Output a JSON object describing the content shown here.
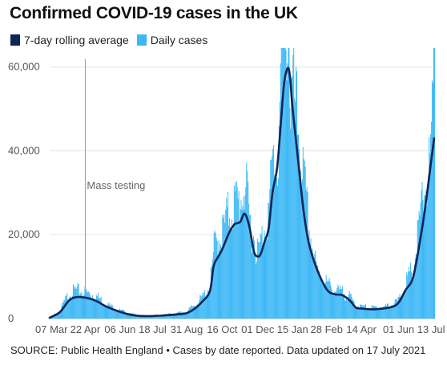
{
  "title": "Confirmed COVID-19 cases in the UK",
  "legend": [
    {
      "label": "7-day rolling average",
      "color": "#0f2557"
    },
    {
      "label": "Daily cases",
      "color": "#3db8f5"
    }
  ],
  "annotation": "Mass testing",
  "source": "SOURCE: Public Health England • Cases by date reported. Data updated on 17 July 2021",
  "chart_data": {
    "type": "bar",
    "title": "Confirmed COVID-19 cases in the UK",
    "xlabel": "",
    "ylabel": "",
    "x_start": "2020-03-07",
    "x_end": "2021-07-17",
    "ylim": [
      0,
      63000
    ],
    "yticks": [
      0,
      20000,
      40000,
      60000
    ],
    "ytick_labels": [
      "0",
      "20,000",
      "40,000",
      "60,000"
    ],
    "xtick_labels": [
      "07 Mar",
      "22 Apr",
      "06 Jun",
      "18 Jul",
      "31 Aug",
      "16 Oct",
      "01 Dec",
      "15 Jan",
      "28 Feb",
      "14 Apr",
      "01 Jun",
      "13 Jul"
    ],
    "xtick_dates": [
      "2020-03-07",
      "2020-04-22",
      "2020-06-06",
      "2020-07-18",
      "2020-08-31",
      "2020-10-16",
      "2020-12-01",
      "2021-01-15",
      "2021-02-28",
      "2021-04-14",
      "2021-06-01",
      "2021-07-13"
    ],
    "grid": true,
    "legend_position": "top-left",
    "vline": {
      "date": "2020-04-22",
      "label": "Mass testing"
    },
    "series": [
      {
        "name": "7-day rolling average",
        "type": "line",
        "color": "#0f2557",
        "points": [
          [
            "2020-03-07",
            200
          ],
          [
            "2020-03-20",
            1500
          ],
          [
            "2020-04-01",
            4300
          ],
          [
            "2020-04-10",
            5100
          ],
          [
            "2020-04-22",
            5000
          ],
          [
            "2020-05-05",
            4300
          ],
          [
            "2020-05-20",
            2800
          ],
          [
            "2020-06-06",
            1600
          ],
          [
            "2020-06-20",
            900
          ],
          [
            "2020-07-03",
            600
          ],
          [
            "2020-07-18",
            600
          ],
          [
            "2020-08-01",
            750
          ],
          [
            "2020-08-15",
            950
          ],
          [
            "2020-08-31",
            1300
          ],
          [
            "2020-09-10",
            2300
          ],
          [
            "2020-09-20",
            4000
          ],
          [
            "2020-09-30",
            6500
          ],
          [
            "2020-10-05",
            12500
          ],
          [
            "2020-10-10",
            14500
          ],
          [
            "2020-10-16",
            16500
          ],
          [
            "2020-10-25",
            20500
          ],
          [
            "2020-11-01",
            22500
          ],
          [
            "2020-11-08",
            23000
          ],
          [
            "2020-11-14",
            25000
          ],
          [
            "2020-11-20",
            22000
          ],
          [
            "2020-11-26",
            16000
          ],
          [
            "2020-12-01",
            14800
          ],
          [
            "2020-12-05",
            15500
          ],
          [
            "2020-12-10",
            18500
          ],
          [
            "2020-12-15",
            21500
          ],
          [
            "2020-12-20",
            30000
          ],
          [
            "2020-12-26",
            36000
          ],
          [
            "2020-12-31",
            47000
          ],
          [
            "2021-01-04",
            56000
          ],
          [
            "2021-01-09",
            59800
          ],
          [
            "2021-01-12",
            57000
          ],
          [
            "2021-01-15",
            50000
          ],
          [
            "2021-01-22",
            38000
          ],
          [
            "2021-01-29",
            26000
          ],
          [
            "2021-02-05",
            18000
          ],
          [
            "2021-02-15",
            12000
          ],
          [
            "2021-02-28",
            7000
          ],
          [
            "2021-03-10",
            5800
          ],
          [
            "2021-03-20",
            5600
          ],
          [
            "2021-03-30",
            4300
          ],
          [
            "2021-04-07",
            2600
          ],
          [
            "2021-04-14",
            2400
          ],
          [
            "2021-04-28",
            2200
          ],
          [
            "2021-05-12",
            2400
          ],
          [
            "2021-05-24",
            2800
          ],
          [
            "2021-06-01",
            3800
          ],
          [
            "2021-06-10",
            6800
          ],
          [
            "2021-06-20",
            10000
          ],
          [
            "2021-06-30",
            20000
          ],
          [
            "2021-07-05",
            26000
          ],
          [
            "2021-07-10",
            33000
          ],
          [
            "2021-07-13",
            37500
          ],
          [
            "2021-07-17",
            43000
          ]
        ]
      },
      {
        "name": "Daily cases",
        "type": "bar",
        "color": "#3db8f5",
        "points": [
          [
            "2020-03-07",
            150
          ],
          [
            "2020-03-20",
            1800
          ],
          [
            "2020-04-01",
            5500
          ],
          [
            "2020-04-10",
            6000
          ],
          [
            "2020-04-22",
            5600
          ],
          [
            "2020-05-05",
            4900
          ],
          [
            "2020-05-20",
            3000
          ],
          [
            "2020-06-06",
            1700
          ],
          [
            "2020-06-20",
            1000
          ],
          [
            "2020-07-03",
            650
          ],
          [
            "2020-07-18",
            700
          ],
          [
            "2020-08-01",
            800
          ],
          [
            "2020-08-15",
            1100
          ],
          [
            "2020-08-31",
            1500
          ],
          [
            "2020-09-10",
            2900
          ],
          [
            "2020-09-20",
            4500
          ],
          [
            "2020-09-30",
            7000
          ],
          [
            "2020-10-05",
            15000
          ],
          [
            "2020-10-10",
            17000
          ],
          [
            "2020-10-16",
            18500
          ],
          [
            "2020-10-25",
            23000
          ],
          [
            "2020-11-01",
            24500
          ],
          [
            "2020-11-08",
            25000
          ],
          [
            "2020-11-14",
            29000
          ],
          [
            "2020-11-20",
            21000
          ],
          [
            "2020-11-26",
            17000
          ],
          [
            "2020-12-01",
            14000
          ],
          [
            "2020-12-05",
            16500
          ],
          [
            "2020-12-10",
            20500
          ],
          [
            "2020-12-15",
            23000
          ],
          [
            "2020-12-20",
            34000
          ],
          [
            "2020-12-26",
            32000
          ],
          [
            "2020-12-31",
            55000
          ],
          [
            "2021-01-04",
            58000
          ],
          [
            "2021-01-09",
            68000
          ],
          [
            "2021-01-12",
            45000
          ],
          [
            "2021-01-15",
            48000
          ],
          [
            "2021-01-22",
            40000
          ],
          [
            "2021-01-29",
            29000
          ],
          [
            "2021-02-05",
            19000
          ],
          [
            "2021-02-15",
            10000
          ],
          [
            "2021-02-28",
            7500
          ],
          [
            "2021-03-10",
            6000
          ],
          [
            "2021-03-20",
            5600
          ],
          [
            "2021-03-30",
            4500
          ],
          [
            "2021-04-07",
            2800
          ],
          [
            "2021-04-14",
            2500
          ],
          [
            "2021-04-28",
            2300
          ],
          [
            "2021-05-12",
            2500
          ],
          [
            "2021-05-24",
            3000
          ],
          [
            "2021-06-01",
            4000
          ],
          [
            "2021-06-10",
            7500
          ],
          [
            "2021-06-20",
            11000
          ],
          [
            "2021-06-30",
            23000
          ],
          [
            "2021-07-05",
            28000
          ],
          [
            "2021-07-10",
            32000
          ],
          [
            "2021-07-13",
            36000
          ],
          [
            "2021-07-17",
            54000
          ]
        ]
      }
    ]
  }
}
